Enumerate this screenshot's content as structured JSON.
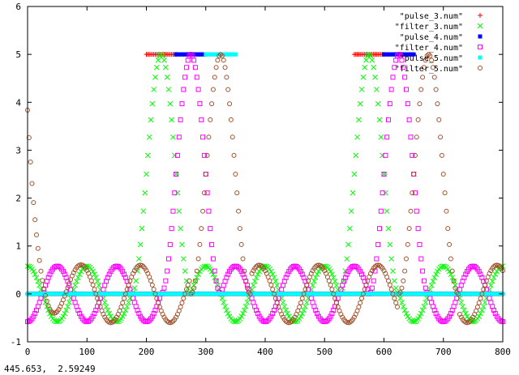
{
  "status_bar": {
    "coordinates": "445.653,  2.59249"
  },
  "chart_data": {
    "type": "scatter",
    "xlim": [
      0,
      800
    ],
    "ylim": [
      -1,
      6
    ],
    "x_ticks": [
      "0",
      "100",
      "200",
      "300",
      "400",
      "500",
      "600",
      "700",
      "800"
    ],
    "y_ticks": [
      "-1",
      "0",
      "1",
      "2",
      "3",
      "4",
      "5",
      "6"
    ],
    "legend_position": "top-right",
    "grid": false,
    "series": [
      {
        "name": "\"pulse_3.num\"",
        "color": "#ff0000",
        "marker": "plus",
        "segments": [
          {
            "x": [
              0,
              800
            ],
            "y": 0
          },
          {
            "x": [
              200,
              250
            ],
            "y": 5
          },
          {
            "x": [
              550,
              600
            ],
            "y": 5
          }
        ]
      },
      {
        "name": "\"filter_3.num\"",
        "color": "#00ff00",
        "marker": "cross",
        "curve": {
          "x_range": [
            0,
            800
          ],
          "step": 2.5,
          "pulses": [
            {
              "center": 225,
              "half_width": 50,
              "height": 5
            },
            {
              "center": 575,
              "half_width": 50,
              "height": 5
            }
          ],
          "ripple": {
            "amplitude": 0.58,
            "period": 100,
            "zero_at": 25,
            "phase": "down"
          }
        }
      },
      {
        "name": "\"pulse_4.num\"",
        "color": "#0000ff",
        "marker": "filled-square",
        "segments": [
          {
            "x": [
              0,
              800
            ],
            "y": 0
          },
          {
            "x": [
              250,
              300
            ],
            "y": 5
          },
          {
            "x": [
              600,
              650
            ],
            "y": 5
          }
        ]
      },
      {
        "name": "\"filter_4.num\"",
        "color": "#ff00ff",
        "marker": "square",
        "curve": {
          "x_range": [
            0,
            800
          ],
          "step": 2.5,
          "pulses": [
            {
              "center": 275,
              "half_width": 50,
              "height": 5
            },
            {
              "center": 625,
              "half_width": 50,
              "height": 5
            }
          ],
          "ripple": {
            "amplitude": 0.58,
            "period": 100,
            "zero_at": 25,
            "phase": "up"
          }
        }
      },
      {
        "name": "\"pulse_5.num\"",
        "color": "#00ffff",
        "marker": "filled-square",
        "segments": [
          {
            "x": [
              0,
              800
            ],
            "y": 0
          },
          {
            "x": [
              300,
              350
            ],
            "y": 5
          }
        ]
      },
      {
        "name": "\"filter_5.num\"",
        "color": "#a0522d",
        "marker": "circle",
        "curve": {
          "x_range": [
            0,
            800
          ],
          "step": 2.5,
          "pulses": [
            {
              "center": 325,
              "half_width": 50,
              "height": 5
            },
            {
              "center": 675,
              "half_width": 50,
              "height": 5
            }
          ],
          "ripple": {
            "amplitude": 0.6,
            "period": 100,
            "zero_at": 15,
            "phase": "down"
          },
          "start_spike": {
            "y0": 3.35,
            "decay": 15
          }
        }
      }
    ]
  }
}
